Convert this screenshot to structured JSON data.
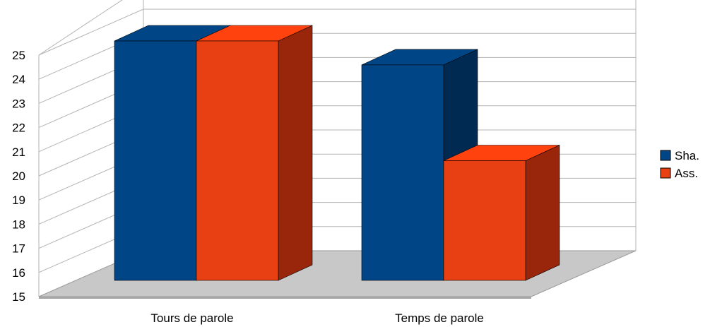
{
  "chart_data": {
    "type": "bar",
    "style": "3d-clustered",
    "categories": [
      "Tours de parole",
      "Temps de parole"
    ],
    "series": [
      {
        "name": "Sha.",
        "values": [
          25,
          24
        ],
        "color": "#004586",
        "side_color": "#002a52"
      },
      {
        "name": "Ass.",
        "values": [
          25,
          20
        ],
        "color": "#e84012",
        "side_color": "#99260b",
        "top_color": "#ff420e"
      }
    ],
    "ylim": [
      15,
      25
    ],
    "yticks": [
      "15",
      "16",
      "17",
      "18",
      "19",
      "20",
      "21",
      "22",
      "23",
      "24",
      "25"
    ],
    "grid": true,
    "legend_position": "right",
    "floor_color": "#c8c8c8"
  }
}
